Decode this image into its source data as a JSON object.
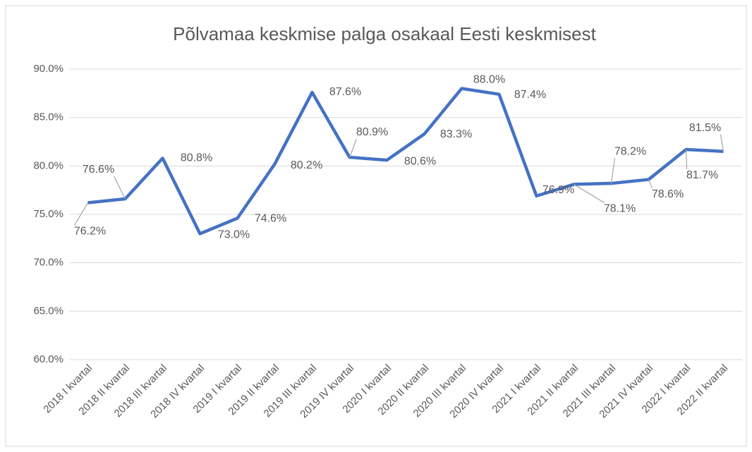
{
  "chart_data": {
    "type": "line",
    "title": "Põlvamaa keskmise palga osakaal Eesti keskmisest",
    "categories": [
      "2018 I kvartal",
      "2018 II kvartal",
      "2018 III kvartal",
      "2018 IV kvartal",
      "2019 I kvartal",
      "2019 II kvartal",
      "2019 III kvartal",
      "2019 IV kvartal",
      "2020 I kvartal",
      "2020 II kvartal",
      "2020 III kvartal",
      "2020 IV kvartal",
      "2021 I kvartal",
      "2021 II kvartal",
      "2021 III kvartal",
      "2021 IV kvartal",
      "2022 I kvartal",
      "2022 II kvartal"
    ],
    "series": [
      {
        "color": "#4472c4",
        "values": [
          76.2,
          76.6,
          80.8,
          73.0,
          74.6,
          80.2,
          87.6,
          80.9,
          80.6,
          83.3,
          88.0,
          87.4,
          76.9,
          78.1,
          78.2,
          78.6,
          81.7,
          81.5
        ],
        "value_labels": [
          "76.2%",
          "76.6%",
          "80.8%",
          "73.0%",
          "74.6%",
          "80.2%",
          "87.6%",
          "80.9%",
          "80.6%",
          "83.3%",
          "88.0%",
          "87.4%",
          "76.9%",
          "78.1%",
          "78.2%",
          "78.6%",
          "81.7%",
          "81.5%"
        ]
      }
    ],
    "ylim": [
      60,
      90
    ],
    "yticks": [
      {
        "value": 60,
        "label": "60.0%"
      },
      {
        "value": 65,
        "label": "65.0%"
      },
      {
        "value": 70,
        "label": "70.0%"
      },
      {
        "value": 75,
        "label": "75.0%"
      },
      {
        "value": 80,
        "label": "80.0%"
      },
      {
        "value": 85,
        "label": "85.0%"
      },
      {
        "value": 90,
        "label": "90.0%"
      }
    ],
    "grid": true
  }
}
